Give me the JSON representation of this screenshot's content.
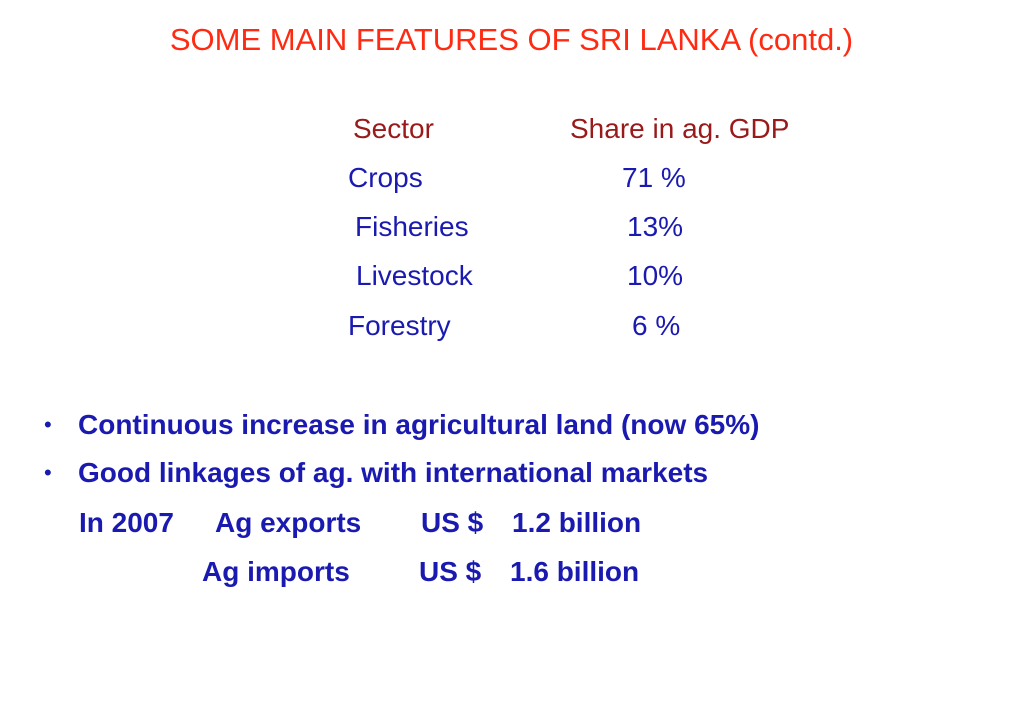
{
  "slide": {
    "title": "SOME MAIN FEATURES OF SRI LANKA (contd.)"
  },
  "sector_table": {
    "headers": {
      "sector": "Sector",
      "share": "Share in ag. GDP"
    },
    "rows": [
      {
        "sector": "Crops",
        "share": "71 %"
      },
      {
        "sector": "Fisheries",
        "share": "13%"
      },
      {
        "sector": "Livestock",
        "share": "10%"
      },
      {
        "sector": "Forestry",
        "share": "6 %"
      }
    ]
  },
  "bullets": [
    "Continuous increase in agricultural land (now 65%)",
    "Good linkages of ag. with international markets"
  ],
  "trade": {
    "year_label": "In 2007",
    "exports_label": "Ag exports",
    "exports_currency": "US $",
    "exports_value": "1.2 billion",
    "imports_label": "Ag imports",
    "imports_currency": "US $",
    "imports_value": "1.6 billion"
  },
  "colors": {
    "title": "#ff2a12",
    "table_header": "#991a1a",
    "body_text": "#1a1ab0"
  }
}
